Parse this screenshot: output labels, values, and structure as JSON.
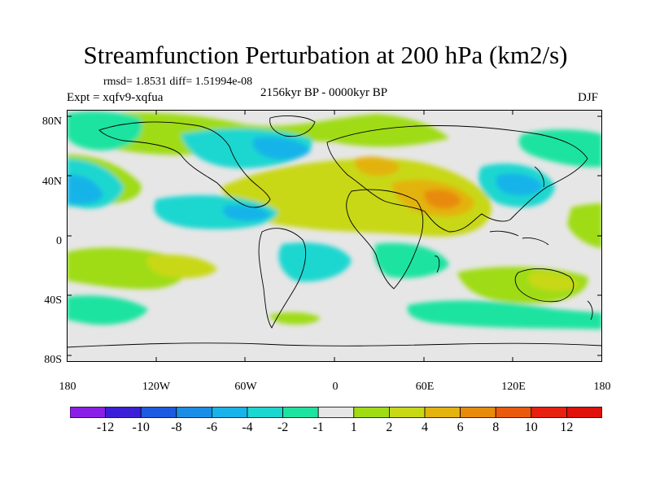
{
  "title": "Streamfunction Perturbation at 200 hPa (km2/s)",
  "stats": "rmsd= 1.8531 diff= 1.51994e-08",
  "expt": "Expt = xqfv9-xqfua",
  "period": "2156kyr BP - 0000kyr BP",
  "season": "DJF",
  "lat_labels": [
    "80N",
    "40N",
    "0",
    "40S",
    "80S"
  ],
  "lon_labels": [
    "180",
    "120W",
    "60W",
    "0",
    "60E",
    "120E",
    "180"
  ],
  "colorbar": {
    "labels": [
      "-12",
      "-10",
      "-8",
      "-6",
      "-4",
      "-2",
      "-1",
      "1",
      "2",
      "4",
      "6",
      "8",
      "10",
      "12"
    ],
    "colors": [
      "#8a1fe8",
      "#3b1fd8",
      "#1c5be0",
      "#1a8ee6",
      "#18b3e8",
      "#1ad7d0",
      "#1ee3a0",
      "#e6e6e6",
      "#9fdc14",
      "#c8d814",
      "#e3b30f",
      "#e88a0c",
      "#ea5a0c",
      "#e8200f",
      "#e0100a"
    ]
  },
  "map_regions": {
    "neutral": "#e6e6e6",
    "green_pos": "#9fdc14",
    "yellow": "#c8d814",
    "orange": "#e3b30f",
    "dark_orange": "#e88a0c",
    "teal": "#1ee3a0",
    "cyan": "#1ad7d0",
    "light_blue": "#18b3e8",
    "blue": "#1a8ee6"
  }
}
